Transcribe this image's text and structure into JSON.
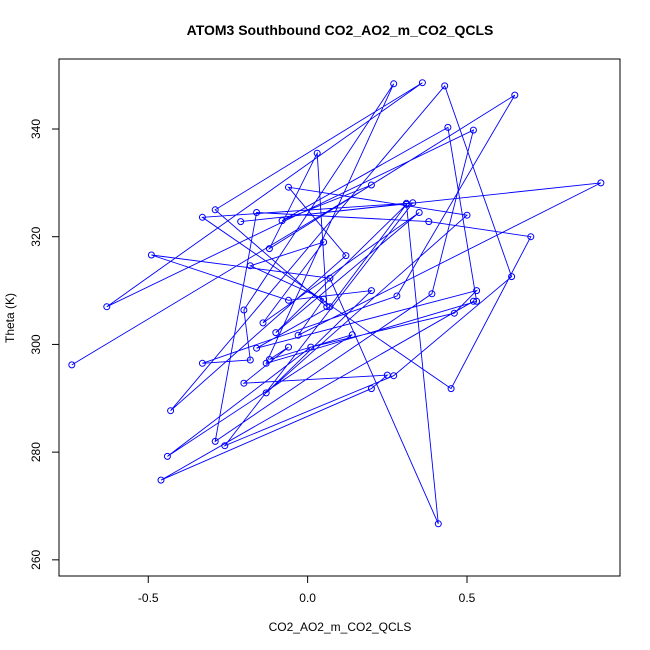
{
  "chart_data": {
    "type": "line",
    "title": "ATOM3 Southbound CO2_AO2_m_CO2_QCLS",
    "xlabel": "CO2_AO2_m_CO2_QCLS",
    "ylabel": "Theta (K)",
    "xlim": [
      -0.78,
      0.98
    ],
    "ylim": [
      257,
      353
    ],
    "xticks": [
      -0.5,
      0.0,
      0.5
    ],
    "xtick_labels": [
      "-0.5",
      "0.0",
      "0.5"
    ],
    "yticks": [
      260,
      280,
      300,
      320,
      340
    ],
    "ytick_labels": [
      "260",
      "280",
      "300",
      "320",
      "340"
    ],
    "grid": false,
    "legend": "none",
    "color": "#0000ff",
    "series": [
      {
        "x": [
          -0.74,
          0.2,
          -0.08,
          0.44,
          0.53,
          -0.13,
          0.27,
          -0.2,
          -0.18,
          -0.33,
          0.28,
          0.65,
          -0.12,
          0.03,
          0.06,
          -0.29,
          0.36,
          -0.63,
          0.52,
          0.39,
          -0.29,
          -0.16,
          0.38,
          0.7,
          0.45,
          -0.33,
          0.31,
          0.41,
          0.07,
          -0.49,
          -0.06,
          0.2,
          -0.13,
          0.5,
          -0.06,
          0.12,
          -0.43,
          0.43,
          0.64,
          0.27,
          -0.26,
          0.33,
          -0.21,
          0.92,
          -0.03,
          0.05,
          -0.18,
          0.05,
          -0.14,
          0.35,
          -0.1,
          0.31,
          0.07,
          -0.16,
          0.53,
          0.46,
          0.01,
          -0.44,
          0.14,
          -0.12,
          -0.06,
          -0.2,
          0.25,
          0.2,
          -0.46,
          0.52
        ],
        "y": [
          296.2,
          329.6,
          323.0,
          340.3,
          308.0,
          296.5,
          348.4,
          306.4,
          297.1,
          296.5,
          309.0,
          346.3,
          317.8,
          335.5,
          307.0,
          325.0,
          348.6,
          307.0,
          339.8,
          309.4,
          282.0,
          324.5,
          322.8,
          320.0,
          291.8,
          323.6,
          326.2,
          266.7,
          312.3,
          316.6,
          308.2,
          310.0,
          291.0,
          324.0,
          329.2,
          316.5,
          287.7,
          348.0,
          312.6,
          294.2,
          281.2,
          326.3,
          322.8,
          330.0,
          301.7,
          308.4,
          314.6,
          319.0,
          304.0,
          324.5,
          302.2,
          326.0,
          307.0,
          299.3,
          310.0,
          305.8,
          299.5,
          279.2,
          301.8,
          297.2,
          299.5,
          292.8,
          294.3,
          291.8,
          274.8,
          308.0
        ]
      }
    ]
  }
}
